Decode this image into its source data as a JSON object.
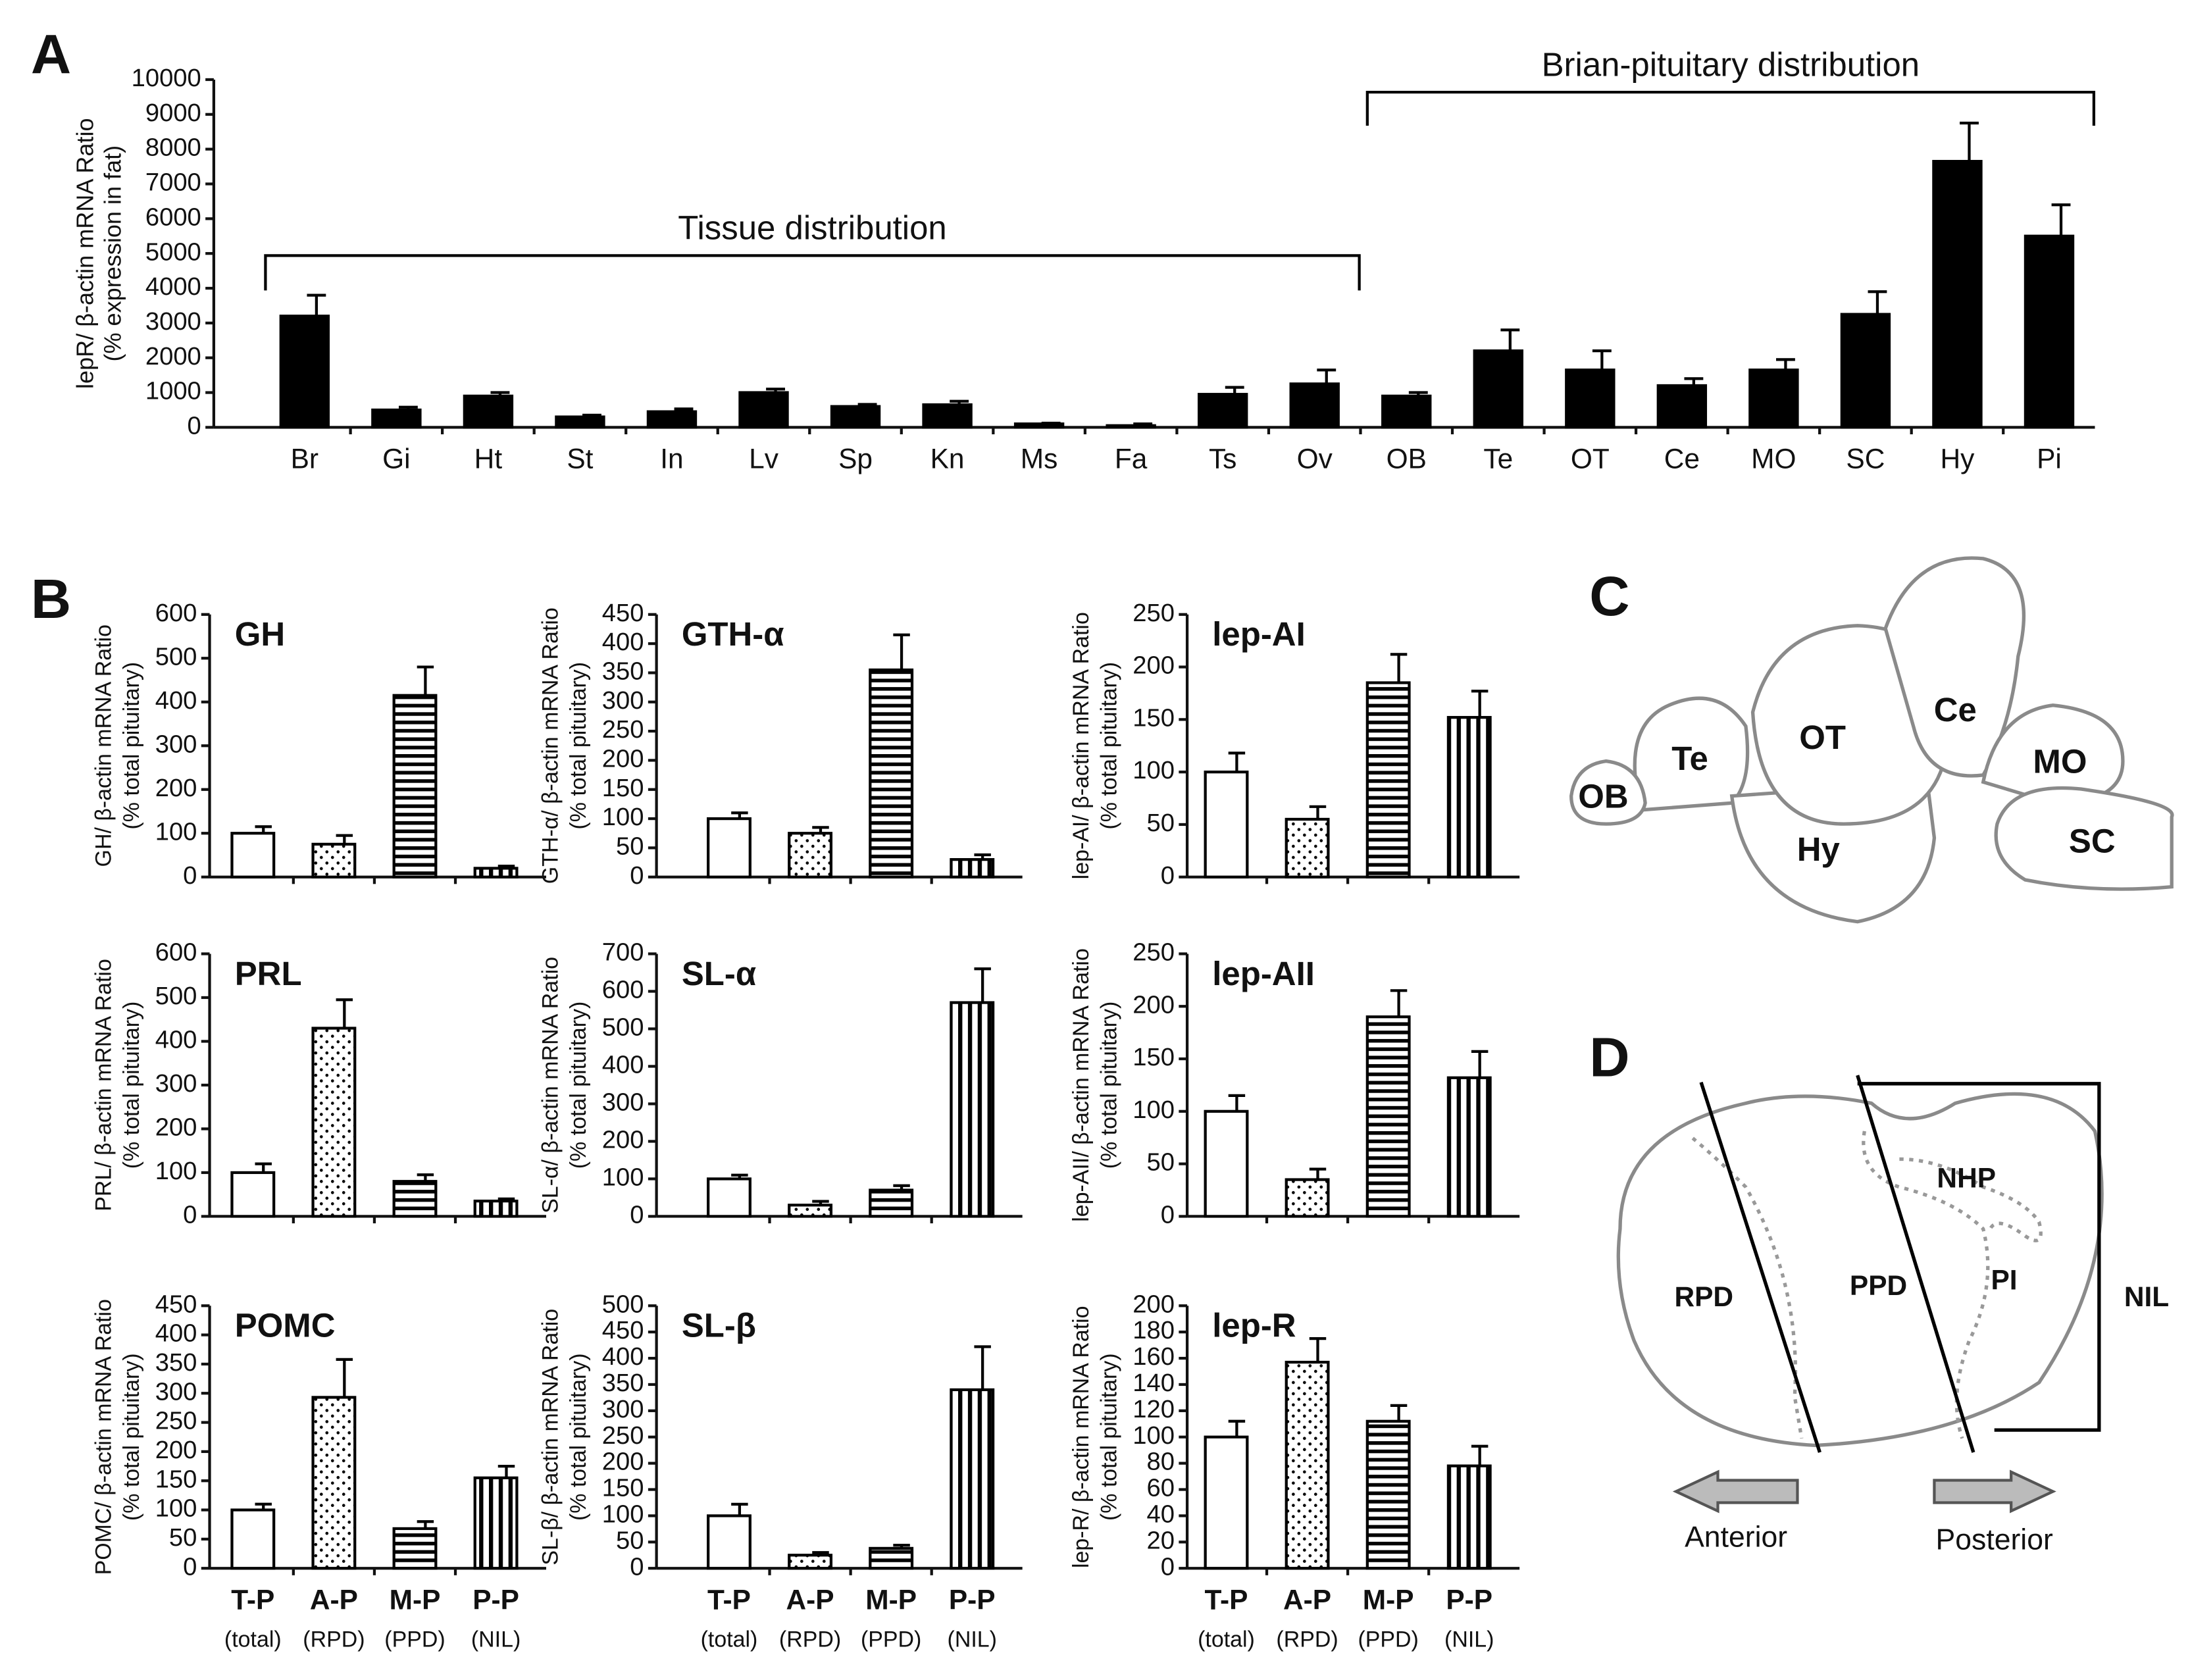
{
  "panel_labels": [
    "A",
    "B",
    "C",
    "D"
  ],
  "chart_data": [
    {
      "type": "bar",
      "categories": [
        "Br",
        "Gi",
        "Ht",
        "St",
        "In",
        "Lv",
        "Sp",
        "Kn",
        "Ms",
        "Fa",
        "Ts",
        "Ov",
        "OB",
        "Te",
        "OT",
        "Ce",
        "MO",
        "SC",
        "Hy",
        "Pi"
      ],
      "values": [
        3200,
        500,
        900,
        300,
        450,
        1000,
        600,
        650,
        100,
        50,
        950,
        1250,
        900,
        2200,
        1650,
        1200,
        1650,
        3250,
        7650,
        5500
      ],
      "errors": [
        600,
        80,
        100,
        50,
        80,
        100,
        60,
        100,
        20,
        50,
        200,
        400,
        100,
        600,
        550,
        200,
        300,
        650,
        1100,
        900
      ],
      "color": "#000000",
      "ylabel": [
        "lepR/ β-actin mRNA Ratio",
        "(% expression in fat)"
      ],
      "ylim": [
        0,
        10000
      ],
      "yticks": [
        0,
        1000,
        2000,
        3000,
        4000,
        5000,
        6000,
        7000,
        8000,
        9000,
        10000
      ],
      "annotations": [
        "Tissue distribution",
        "Brian-pituitary distribution"
      ]
    },
    {
      "type": "bar",
      "title": "GH",
      "categories": [
        null,
        null,
        null,
        null
      ],
      "values": [
        100,
        75,
        415,
        20
      ],
      "errors": [
        15,
        20,
        65,
        5
      ],
      "fills": [
        "none",
        "dots",
        "horizontal",
        "vertical"
      ],
      "ylabel": [
        "GH/ β-actin mRNA Ratio",
        "(% total pituitary)"
      ],
      "ylim": [
        0,
        600
      ],
      "yticks": [
        0,
        100,
        200,
        300,
        400,
        500,
        600
      ]
    },
    {
      "type": "bar",
      "title": "GTH-α",
      "categories": [
        null,
        null,
        null,
        null
      ],
      "values": [
        100,
        75,
        355,
        30
      ],
      "errors": [
        10,
        10,
        60,
        8
      ],
      "fills": [
        "none",
        "dots",
        "horizontal",
        "vertical"
      ],
      "ylabel": [
        "GTH-α/ β-actin mRNA Ratio",
        "(% total pituitary)"
      ],
      "ylim": [
        0,
        450
      ],
      "yticks": [
        0,
        50,
        100,
        150,
        200,
        250,
        300,
        350,
        400,
        450
      ]
    },
    {
      "type": "bar",
      "title": "lep-AI",
      "categories": [
        null,
        null,
        null,
        null
      ],
      "values": [
        100,
        55,
        185,
        152
      ],
      "errors": [
        18,
        12,
        27,
        25
      ],
      "fills": [
        "none",
        "dots",
        "horizontal",
        "vertical"
      ],
      "ylabel": [
        "lep-AI/ β-actin mRNA Ratio",
        "(% total pituitary)"
      ],
      "ylim": [
        0,
        250
      ],
      "yticks": [
        0,
        50,
        100,
        150,
        200,
        250
      ]
    },
    {
      "type": "bar",
      "title": "PRL",
      "categories": [
        null,
        null,
        null,
        null
      ],
      "values": [
        100,
        430,
        80,
        35
      ],
      "errors": [
        20,
        65,
        15,
        5
      ],
      "fills": [
        "none",
        "dots",
        "horizontal",
        "vertical"
      ],
      "ylabel": [
        "PRL/ β-actin mRNA Ratio",
        "(% total pituitary)"
      ],
      "ylim": [
        0,
        600
      ],
      "yticks": [
        0,
        100,
        200,
        300,
        400,
        500,
        600
      ]
    },
    {
      "type": "bar",
      "title": "SL-α",
      "categories": [
        null,
        null,
        null,
        null
      ],
      "values": [
        100,
        30,
        70,
        570
      ],
      "errors": [
        10,
        10,
        12,
        90
      ],
      "fills": [
        "none",
        "dots",
        "horizontal",
        "vertical"
      ],
      "ylabel": [
        "SL-α/ β-actin mRNA Ratio",
        "(% total pituitary)"
      ],
      "ylim": [
        0,
        700
      ],
      "yticks": [
        0,
        100,
        200,
        300,
        400,
        500,
        600,
        700
      ]
    },
    {
      "type": "bar",
      "title": "lep-AII",
      "categories": [
        null,
        null,
        null,
        null
      ],
      "values": [
        100,
        35,
        190,
        132
      ],
      "errors": [
        15,
        10,
        25,
        25
      ],
      "fills": [
        "none",
        "dots",
        "horizontal",
        "vertical"
      ],
      "ylabel": [
        "lep-AII/ β-actin mRNA Ratio",
        "(% total pituitary)"
      ],
      "ylim": [
        0,
        250
      ],
      "yticks": [
        0,
        50,
        100,
        150,
        200,
        250
      ]
    },
    {
      "type": "bar",
      "title": "POMC",
      "categories": [
        "T-P",
        "A-P",
        "M-P",
        "P-P"
      ],
      "category_sublabels": [
        "(total)",
        "(RPD)",
        "(PPD)",
        "(NIL)"
      ],
      "values": [
        100,
        293,
        68,
        155
      ],
      "errors": [
        10,
        65,
        12,
        20
      ],
      "fills": [
        "none",
        "dots",
        "horizontal",
        "vertical"
      ],
      "ylabel": [
        "POMC/ β-actin mRNA Ratio",
        "(% total pituitary)"
      ],
      "ylim": [
        0,
        450
      ],
      "yticks": [
        0,
        50,
        100,
        150,
        200,
        250,
        300,
        350,
        400,
        450
      ]
    },
    {
      "type": "bar",
      "title": "SL-β",
      "categories": [
        "T-P",
        "A-P",
        "M-P",
        "P-P"
      ],
      "category_sublabels": [
        "(total)",
        "(RPD)",
        "(PPD)",
        "(NIL)"
      ],
      "values": [
        100,
        25,
        38,
        340
      ],
      "errors": [
        22,
        5,
        6,
        82
      ],
      "fills": [
        "none",
        "dots",
        "horizontal",
        "vertical"
      ],
      "ylabel": [
        "SL-β/ β-actin mRNA Ratio",
        "(% total pituitary)"
      ],
      "ylim": [
        0,
        500
      ],
      "yticks": [
        0,
        50,
        100,
        150,
        200,
        250,
        300,
        350,
        400,
        450,
        500
      ]
    },
    {
      "type": "bar",
      "title": "lep-R",
      "categories": [
        "T-P",
        "A-P",
        "M-P",
        "P-P"
      ],
      "category_sublabels": [
        "(total)",
        "(RPD)",
        "(PPD)",
        "(NIL)"
      ],
      "values": [
        100,
        157,
        112,
        78
      ],
      "errors": [
        12,
        18,
        12,
        15
      ],
      "fills": [
        "none",
        "dots",
        "horizontal",
        "vertical"
      ],
      "ylabel": [
        "lep-R/ β-actin mRNA Ratio",
        "(% total pituitary)"
      ],
      "ylim": [
        0,
        200
      ],
      "yticks": [
        0,
        20,
        40,
        60,
        80,
        100,
        120,
        140,
        160,
        180,
        200
      ]
    }
  ],
  "diagram_c": {
    "labels": [
      "OB",
      "Te",
      "OT",
      "Ce",
      "MO",
      "Hy",
      "SC"
    ]
  },
  "diagram_d": {
    "labels": [
      "RPD",
      "PPD",
      "NHP",
      "PI",
      "NIL"
    ],
    "arrows": [
      "Anterior",
      "Posterior"
    ]
  }
}
